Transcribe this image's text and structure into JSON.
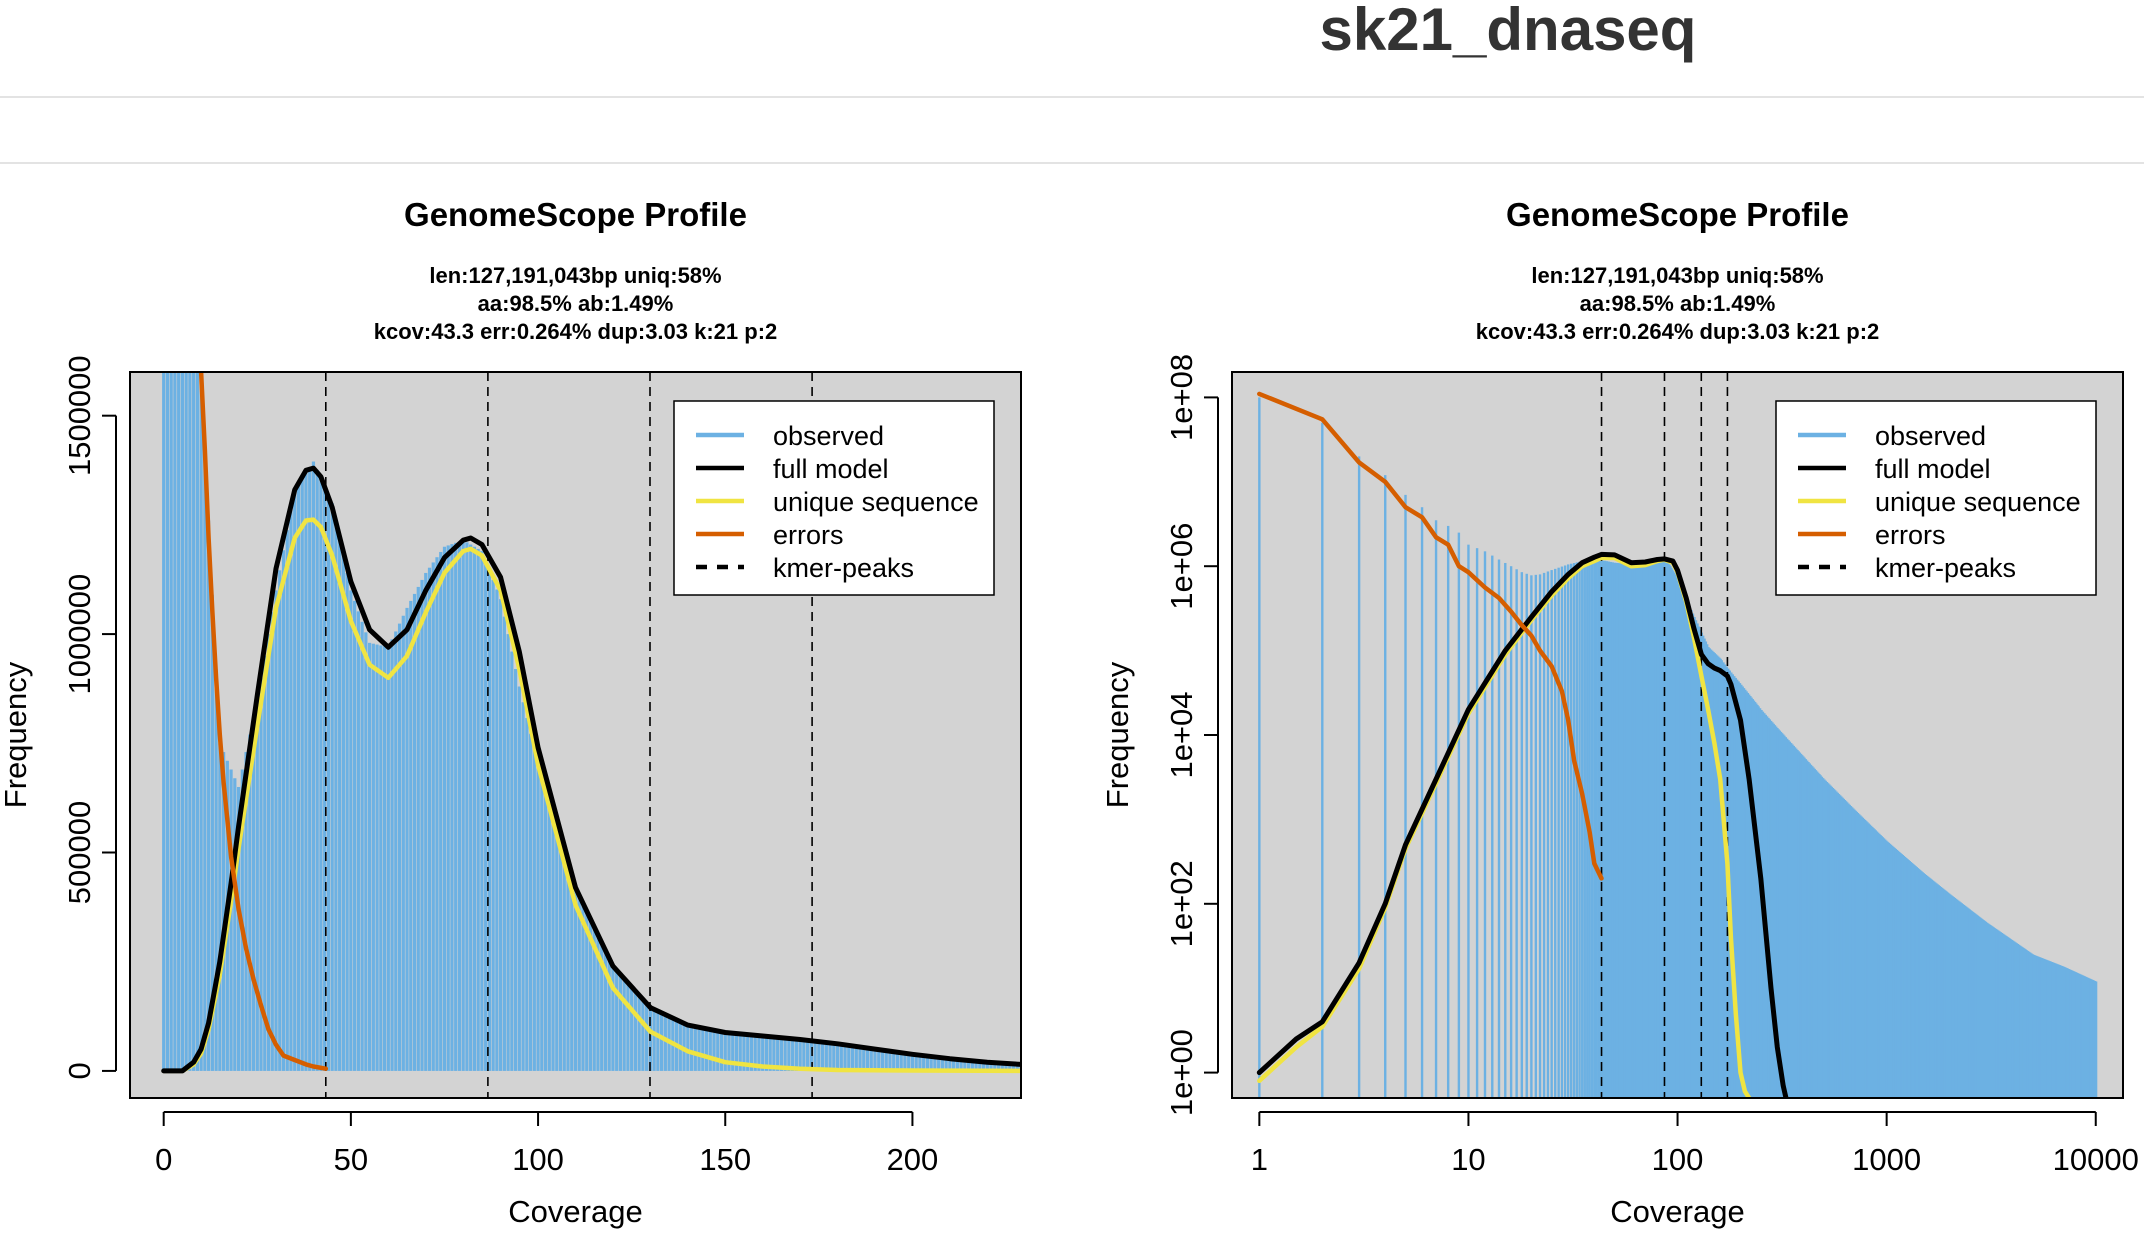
{
  "page": {
    "title": "sk21_dnaseq"
  },
  "colors": {
    "observed": "#6CB1E3",
    "full_model": "#000000",
    "unique_sequence": "#F0E442",
    "errors": "#D55E00",
    "panel_bg": "#D3D3D3"
  },
  "chart_data": [
    {
      "type": "bar",
      "title": "GenomeScope Profile",
      "subtitle": [
        "len:127,191,043bp uniq:58%",
        "aa:98.5% ab:1.49%",
        "kcov:43.3 err:0.264%  dup:3.03  k:21 p:2"
      ],
      "xlabel": "Coverage",
      "ylabel": "Frequency",
      "xscale": "linear",
      "yscale": "linear",
      "xlim": [
        -9,
        229
      ],
      "ylim": [
        -62000,
        1600000
      ],
      "xticks": [
        0,
        50,
        100,
        150,
        200
      ],
      "xtick_labels": [
        "0",
        "50",
        "100",
        "150",
        "200"
      ],
      "yticks": [
        0,
        500000,
        1000000,
        1500000
      ],
      "ytick_labels": [
        "0",
        "500000",
        "1000000",
        "1500000"
      ],
      "kmer_peaks": [
        43.3,
        86.6,
        129.9,
        173.2
      ],
      "legend_position": "top-right",
      "legend": [
        "observed",
        "full model",
        "unique sequence",
        "errors",
        "kmer-peaks"
      ],
      "series": [
        {
          "name": "observed",
          "type": "bar",
          "x": [
            0,
            5,
            10,
            15,
            20,
            25,
            30,
            35,
            40,
            45,
            50,
            55,
            60,
            65,
            70,
            75,
            80,
            85,
            90,
            95,
            100,
            110,
            120,
            130,
            140,
            150,
            160,
            170,
            180,
            190,
            200,
            210,
            220,
            229
          ],
          "y": [
            1600000,
            1600000,
            1600000,
            750000,
            650000,
            850000,
            1100000,
            1330000,
            1395000,
            1300000,
            1100000,
            980000,
            970000,
            1060000,
            1140000,
            1200000,
            1215000,
            1190000,
            1080000,
            880000,
            700000,
            420000,
            240000,
            140000,
            100000,
            85000,
            78000,
            70000,
            58000,
            45000,
            35000,
            27000,
            20000,
            16000
          ]
        },
        {
          "name": "full model",
          "type": "line",
          "x": [
            0,
            5,
            8,
            10,
            12,
            15,
            18,
            20,
            25,
            30,
            35,
            38,
            40,
            42,
            45,
            50,
            55,
            60,
            65,
            70,
            75,
            80,
            82,
            85,
            90,
            95,
            100,
            110,
            120,
            130,
            140,
            150,
            160,
            170,
            180,
            190,
            200,
            210,
            220,
            229
          ],
          "y": [
            0,
            0,
            20000,
            50000,
            110000,
            250000,
            430000,
            560000,
            860000,
            1150000,
            1330000,
            1375000,
            1380000,
            1360000,
            1290000,
            1120000,
            1010000,
            970000,
            1010000,
            1100000,
            1175000,
            1215000,
            1220000,
            1205000,
            1130000,
            960000,
            740000,
            420000,
            240000,
            145000,
            105000,
            88000,
            80000,
            72000,
            62000,
            50000,
            38000,
            28000,
            20000,
            15000
          ]
        },
        {
          "name": "unique sequence",
          "type": "line",
          "x": [
            0,
            5,
            8,
            10,
            12,
            15,
            18,
            20,
            25,
            30,
            35,
            38,
            40,
            42,
            45,
            50,
            55,
            60,
            65,
            70,
            75,
            80,
            82,
            85,
            90,
            95,
            100,
            110,
            120,
            130,
            140,
            150,
            160,
            170,
            180,
            200,
            229
          ],
          "y": [
            0,
            0,
            15000,
            40000,
            95000,
            220000,
            390000,
            510000,
            790000,
            1060000,
            1220000,
            1260000,
            1262000,
            1245000,
            1180000,
            1030000,
            930000,
            900000,
            950000,
            1050000,
            1140000,
            1190000,
            1195000,
            1180000,
            1100000,
            920000,
            700000,
            380000,
            190000,
            90000,
            45000,
            20000,
            10000,
            5000,
            2000,
            1000,
            0
          ]
        },
        {
          "name": "errors",
          "type": "line",
          "x": [
            10,
            11,
            12,
            13,
            14,
            15,
            16,
            18,
            20,
            22,
            24,
            26,
            28,
            30,
            32,
            35,
            38,
            40,
            43.3
          ],
          "y": [
            1600000,
            1420000,
            1220000,
            1050000,
            900000,
            770000,
            660000,
            490000,
            370000,
            280000,
            210000,
            150000,
            95000,
            60000,
            35000,
            25000,
            15000,
            10000,
            5000
          ]
        }
      ]
    },
    {
      "type": "bar",
      "title": "GenomeScope Profile",
      "subtitle": [
        "len:127,191,043bp uniq:58%",
        "aa:98.5% ab:1.49%",
        "kcov:43.3 err:0.264%  dup:3.03  k:21 p:2"
      ],
      "xlabel": "Coverage",
      "ylabel": "Frequency",
      "xscale": "log",
      "yscale": "log",
      "xlim": [
        0.74,
        13500
      ],
      "ylim": [
        0.5,
        200000000
      ],
      "xticks": [
        1,
        10,
        100,
        1000,
        10000
      ],
      "xtick_labels": [
        "1",
        "10",
        "100",
        "1000",
        "10000"
      ],
      "yticks": [
        1,
        100,
        10000,
        1000000,
        100000000
      ],
      "ytick_labels": [
        "1e+00",
        "1e+02",
        "1e+04",
        "1e+06",
        "1e+08"
      ],
      "kmer_peaks": [
        43.3,
        86.6,
        129.9,
        173.2
      ],
      "legend_position": "top-right",
      "legend": [
        "observed",
        "full model",
        "unique sequence",
        "errors",
        "kmer-peaks"
      ],
      "series": [
        {
          "name": "observed",
          "type": "bar",
          "x": [
            1,
            2,
            3,
            4,
            5,
            6,
            7,
            8,
            9,
            10,
            12,
            14,
            16,
            18,
            20,
            22,
            25,
            30,
            35,
            40,
            45,
            50,
            60,
            70,
            80,
            90,
            100,
            120,
            140,
            160,
            180,
            200,
            250,
            300,
            400,
            500,
            700,
            1000,
            1500,
            2000,
            3000,
            5000,
            7000,
            10000
          ],
          "y": [
            100000000,
            50000000,
            20000000,
            12000000,
            7000000,
            5000000,
            3500000,
            3000000,
            2500000,
            1800000,
            1500000,
            1200000,
            1000000,
            850000,
            780000,
            800000,
            900000,
            1050000,
            1150000,
            1180000,
            1160000,
            1100000,
            1050000,
            1100000,
            1150000,
            1100000,
            700000,
            250000,
            110000,
            80000,
            55000,
            40000,
            20000,
            12000,
            5500,
            3000,
            1300,
            550,
            230,
            130,
            60,
            25,
            18,
            12
          ]
        },
        {
          "name": "full model",
          "type": "line",
          "x": [
            1,
            1.5,
            2,
            3,
            4,
            5,
            7,
            10,
            15,
            20,
            25,
            30,
            35,
            40,
            43.3,
            50,
            60,
            70,
            80,
            86.6,
            95,
            100,
            110,
            120,
            130,
            140,
            150,
            160,
            173.2,
            180,
            200,
            220,
            250,
            280,
            300,
            320,
            330
          ],
          "y": [
            1,
            2.5,
            4,
            20,
            100,
            500,
            3000,
            20000,
            100000,
            250000,
            500000,
            800000,
            1100000,
            1280000,
            1380000,
            1360000,
            1100000,
            1120000,
            1200000,
            1220000,
            1150000,
            900000,
            420000,
            180000,
            90000,
            70000,
            62000,
            58000,
            50000,
            40000,
            15000,
            3000,
            200,
            10,
            2,
            0.7,
            0.5
          ]
        },
        {
          "name": "unique sequence",
          "type": "line",
          "x": [
            1,
            1.5,
            2,
            3,
            4,
            5,
            7,
            10,
            15,
            20,
            25,
            30,
            35,
            40,
            43.3,
            50,
            60,
            70,
            80,
            86.6,
            95,
            100,
            110,
            120,
            130,
            140,
            150,
            160,
            173.2,
            180,
            190,
            200,
            210,
            220
          ],
          "y": [
            0.8,
            2,
            3.5,
            17,
            90,
            450,
            2700,
            18000,
            90000,
            230000,
            450000,
            720000,
            1000000,
            1150000,
            1260000,
            1250000,
            1000000,
            1030000,
            1150000,
            1195000,
            1100000,
            850000,
            380000,
            140000,
            50000,
            20000,
            8000,
            3000,
            300,
            40,
            5,
            1,
            0.6,
            0.5
          ]
        },
        {
          "name": "errors",
          "type": "line",
          "x": [
            1,
            2,
            3,
            4,
            5,
            6,
            7,
            8,
            9,
            10,
            12,
            14,
            16,
            18,
            20,
            22,
            25,
            28,
            30,
            32,
            35,
            38,
            40,
            43.3
          ],
          "y": [
            110000000,
            55000000,
            17000000,
            10000000,
            5000000,
            3800000,
            2200000,
            1800000,
            1000000,
            850000,
            560000,
            420000,
            290000,
            200000,
            150000,
            100000,
            65000,
            33000,
            15000,
            5000,
            2000,
            700,
            300,
            200
          ]
        }
      ]
    }
  ]
}
